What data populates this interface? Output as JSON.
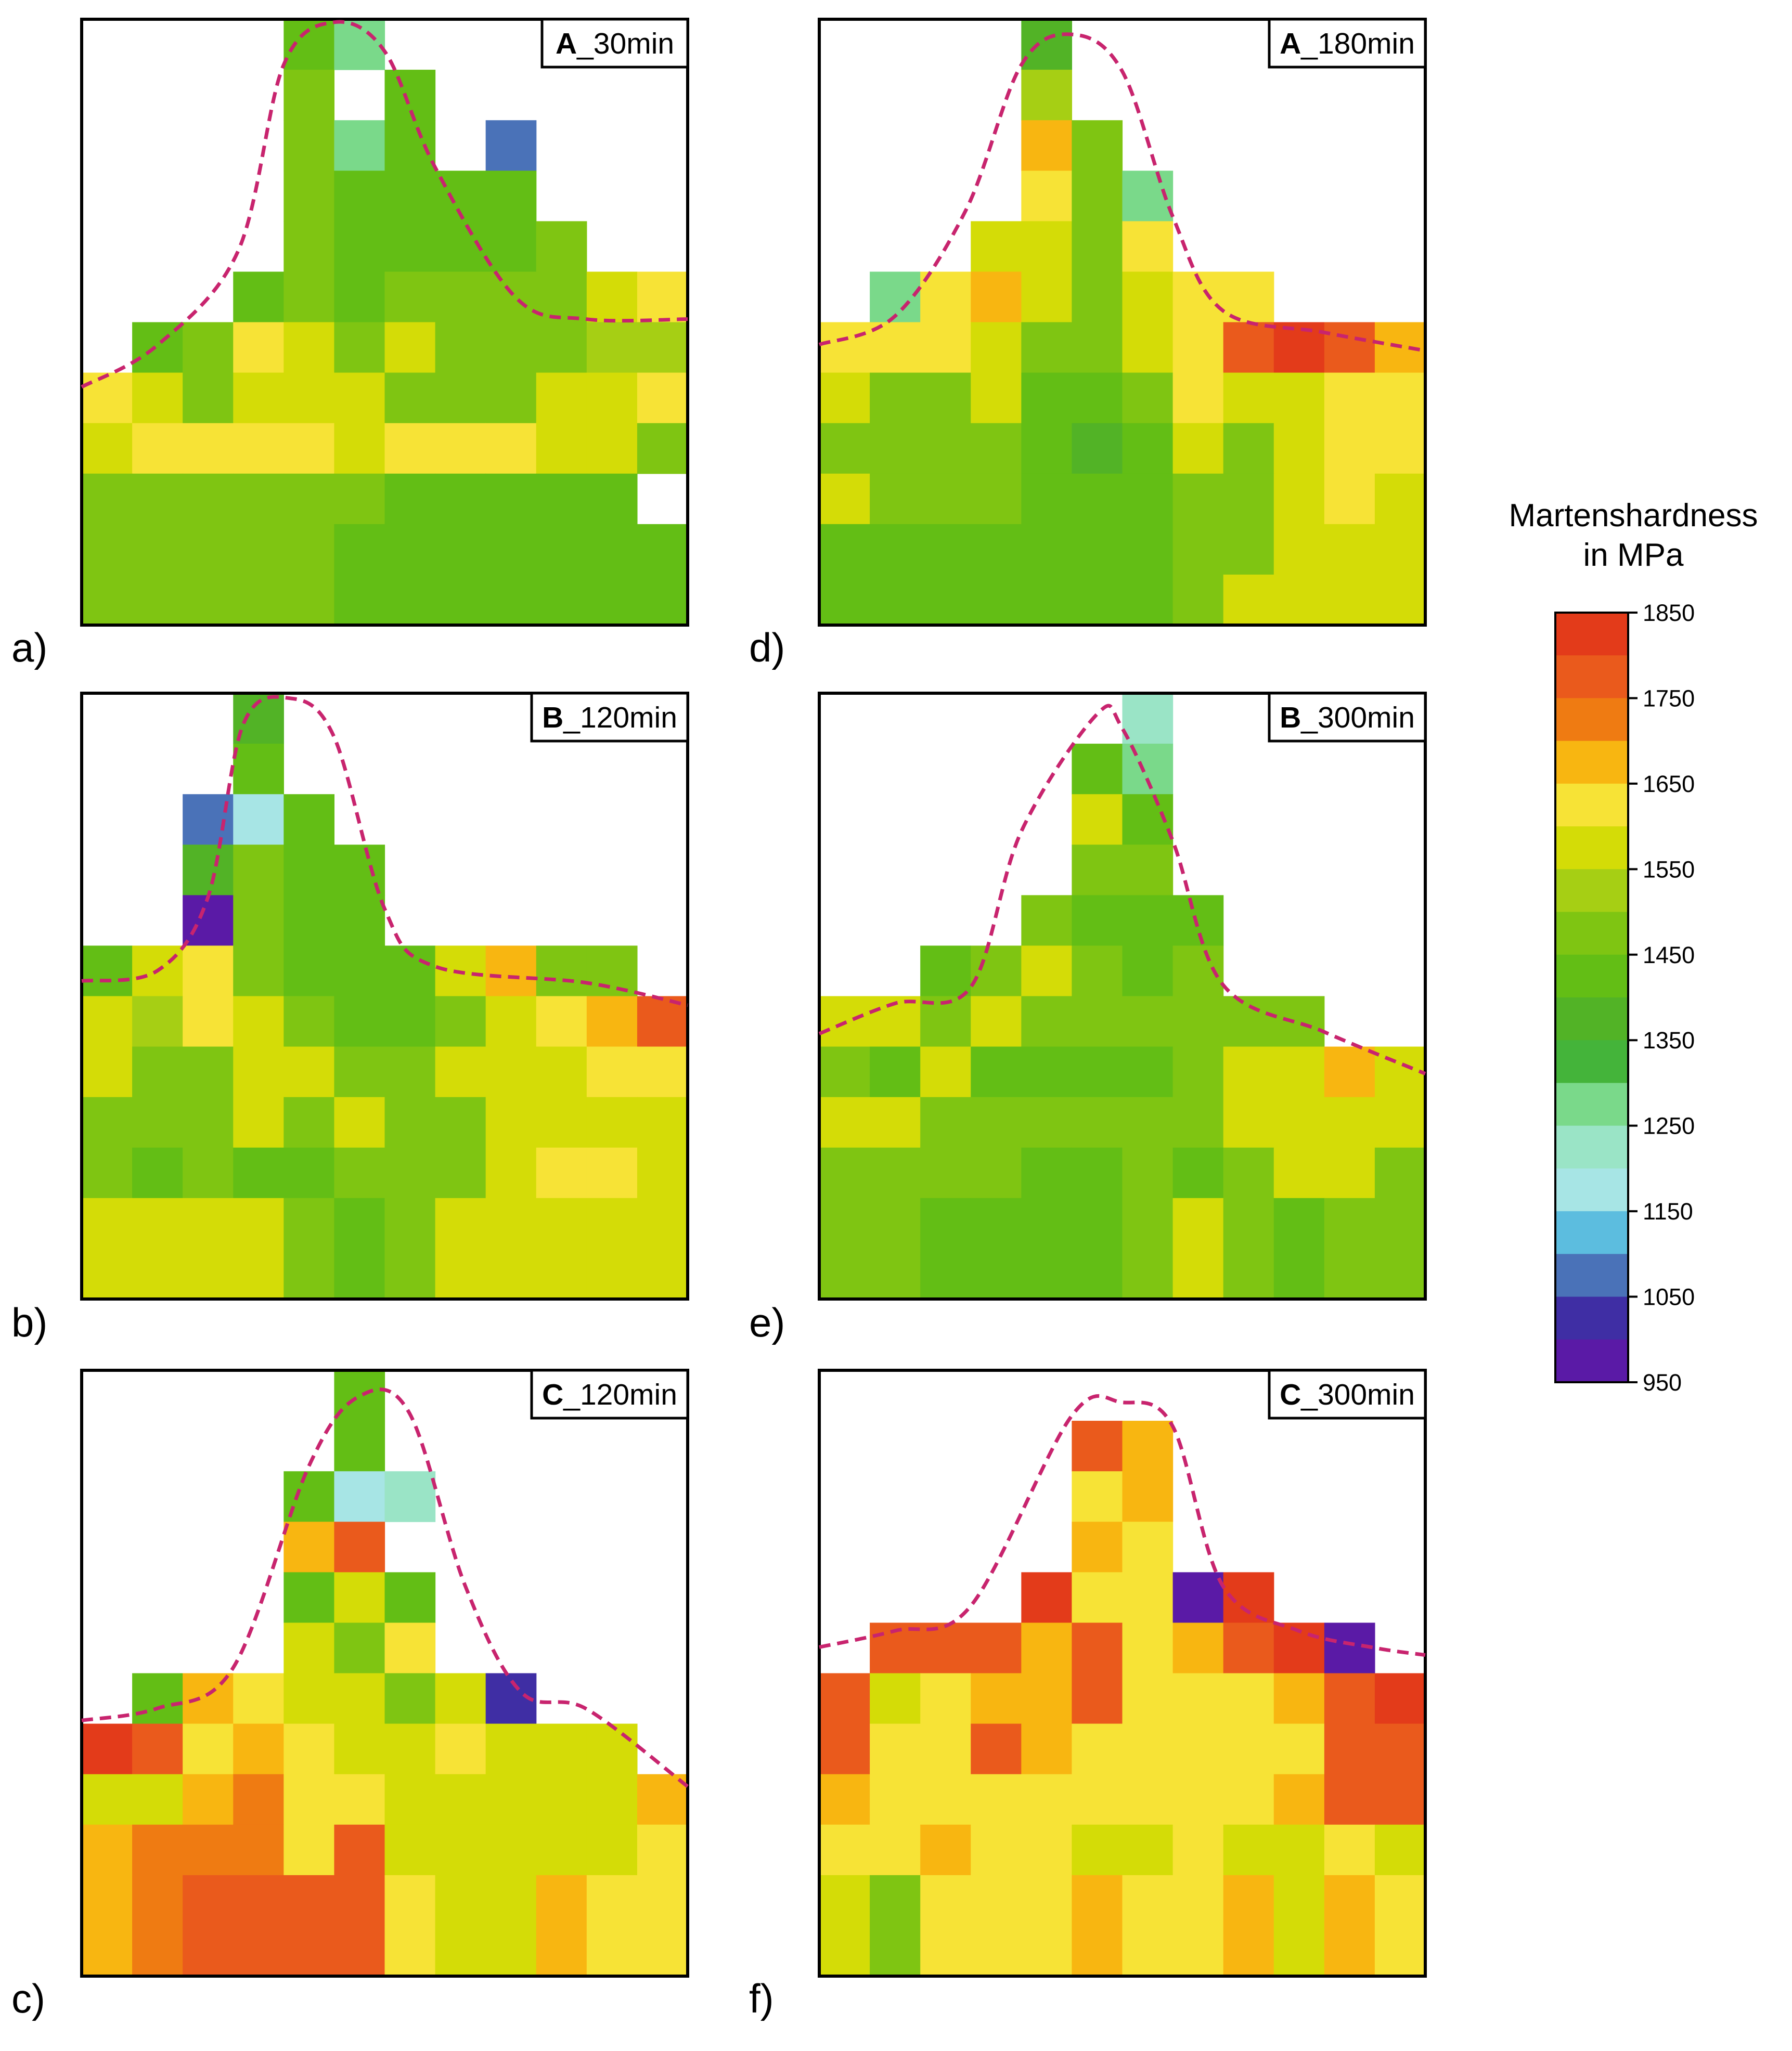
{
  "legend": {
    "title_line1": "Martenshardness",
    "title_line2": "in MPa",
    "ticks": [
      "1850",
      "1750",
      "1650",
      "1550",
      "1450",
      "1350",
      "1250",
      "1150",
      "1050",
      "950"
    ],
    "colors_top_to_bottom": [
      "#e33b1a",
      "#ea5a1c",
      "#ef7b12",
      "#f8b611",
      "#f7e336",
      "#d4dc07",
      "#a6cf14",
      "#7fc512",
      "#63be15",
      "#52b326",
      "#44b43a",
      "#7ad98a",
      "#9ae4c6",
      "#a7e5e5",
      "#5cbddf",
      "#4a72b8",
      "#3f2ea4",
      "#5a1aa6"
    ]
  },
  "chart_data": [
    {
      "type": "heatmap",
      "panel": "a)",
      "title_bold": "A",
      "title_rest": "_30min",
      "unit": "Martenshardness in MPa",
      "rows": 12,
      "cols": 12,
      "values": [
        [
          null,
          null,
          null,
          null,
          1430,
          1270,
          null,
          null,
          null,
          null,
          null,
          null
        ],
        [
          null,
          null,
          null,
          null,
          1500,
          null,
          1420,
          null,
          null,
          null,
          null,
          null
        ],
        [
          null,
          null,
          null,
          null,
          1500,
          1270,
          1430,
          null,
          1080,
          null,
          null,
          null
        ],
        [
          null,
          null,
          null,
          null,
          1480,
          1440,
          1440,
          1440,
          1440,
          null,
          null,
          null
        ],
        [
          null,
          null,
          null,
          null,
          1480,
          1440,
          1440,
          1440,
          1440,
          1460,
          null,
          null
        ],
        [
          null,
          null,
          null,
          1420,
          1480,
          1430,
          1480,
          1480,
          1480,
          1480,
          1560,
          1650
        ],
        [
          null,
          1440,
          1500,
          1650,
          1570,
          1500,
          1580,
          1500,
          1500,
          1500,
          1540,
          1540
        ],
        [
          1640,
          1570,
          1500,
          1560,
          1560,
          1560,
          1500,
          1500,
          1500,
          1560,
          1560,
          1640
        ],
        [
          1570,
          1650,
          1650,
          1650,
          1650,
          1570,
          1650,
          1650,
          1650,
          1560,
          1560,
          1500
        ],
        [
          1500,
          1500,
          1500,
          1500,
          1500,
          1500,
          1430,
          1410,
          1440,
          1440,
          1440,
          null
        ],
        [
          1500,
          1500,
          1500,
          1500,
          1500,
          1440,
          1440,
          1440,
          1420,
          1420,
          1440,
          1440
        ],
        [
          1500,
          1500,
          1500,
          1500,
          1500,
          1440,
          1440,
          1440,
          1420,
          1420,
          1440,
          1440
        ]
      ]
    },
    {
      "type": "heatmap",
      "panel": "d)",
      "title_bold": "A",
      "title_rest": "_180min",
      "unit": "Martenshardness in MPa",
      "rows": 12,
      "cols": 12,
      "values": [
        [
          null,
          null,
          null,
          null,
          1370,
          null,
          null,
          null,
          null,
          null,
          null,
          null
        ],
        [
          null,
          null,
          null,
          null,
          1520,
          null,
          null,
          null,
          null,
          null,
          null,
          null
        ],
        [
          null,
          null,
          null,
          null,
          1690,
          1500,
          null,
          null,
          null,
          null,
          null,
          null
        ],
        [
          null,
          null,
          null,
          null,
          1650,
          1500,
          1280,
          null,
          null,
          null,
          null,
          null
        ],
        [
          null,
          null,
          null,
          1570,
          1570,
          1500,
          1650,
          null,
          null,
          null,
          null,
          null
        ],
        [
          null,
          1280,
          1650,
          1700,
          1560,
          1500,
          1570,
          1650,
          1650,
          null,
          null,
          null
        ],
        [
          1650,
          1650,
          1650,
          1570,
          1500,
          1500,
          1560,
          1650,
          1780,
          1820,
          1780,
          1700
        ],
        [
          1570,
          1500,
          1500,
          1560,
          1440,
          1420,
          1500,
          1650,
          1570,
          1570,
          1650,
          1650
        ],
        [
          1500,
          1500,
          1500,
          1500,
          1440,
          1400,
          1440,
          1560,
          1500,
          1570,
          1650,
          1650
        ],
        [
          1560,
          1500,
          1500,
          1500,
          1440,
          1440,
          1440,
          1500,
          1500,
          1560,
          1650,
          1560
        ],
        [
          1440,
          1440,
          1440,
          1440,
          1440,
          1440,
          1440,
          1500,
          1500,
          1560,
          1560,
          1560
        ],
        [
          1440,
          1440,
          1440,
          1440,
          1440,
          1440,
          1440,
          1500,
          1560,
          1560,
          1560,
          1560
        ]
      ]
    },
    {
      "type": "heatmap",
      "panel": "b)",
      "title_bold": "B",
      "title_rest": "_120min",
      "unit": "Martenshardness in MPa",
      "rows": 12,
      "cols": 12,
      "values": [
        [
          null,
          null,
          null,
          1360,
          null,
          null,
          null,
          null,
          null,
          null,
          null,
          null
        ],
        [
          null,
          null,
          null,
          1430,
          null,
          null,
          null,
          null,
          null,
          null,
          null,
          null
        ],
        [
          null,
          null,
          1080,
          1180,
          1430,
          null,
          null,
          null,
          null,
          null,
          null,
          null
        ],
        [
          null,
          null,
          1400,
          1500,
          1440,
          1420,
          null,
          null,
          null,
          null,
          null,
          null
        ],
        [
          null,
          null,
          1000,
          1500,
          1440,
          1440,
          null,
          null,
          null,
          null,
          null,
          null
        ],
        [
          1440,
          1570,
          1650,
          1500,
          1430,
          1410,
          1440,
          1570,
          1690,
          1500,
          1500,
          null
        ],
        [
          1560,
          1520,
          1650,
          1560,
          1500,
          1440,
          1440,
          1500,
          1560,
          1650,
          1690,
          1760
        ],
        [
          1560,
          1500,
          1500,
          1560,
          1560,
          1500,
          1500,
          1560,
          1560,
          1560,
          1650,
          1650
        ],
        [
          1500,
          1500,
          1500,
          1560,
          1500,
          1560,
          1500,
          1500,
          1560,
          1560,
          1560,
          1560
        ],
        [
          1500,
          1440,
          1500,
          1440,
          1440,
          1500,
          1500,
          1500,
          1560,
          1650,
          1650,
          1560
        ],
        [
          1560,
          1560,
          1560,
          1560,
          1500,
          1440,
          1500,
          1560,
          1560,
          1560,
          1560,
          1560
        ],
        [
          1560,
          1560,
          1560,
          1560,
          1500,
          1440,
          1500,
          1560,
          1560,
          1560,
          1560,
          1560
        ]
      ]
    },
    {
      "type": "heatmap",
      "panel": "e)",
      "title_bold": "B",
      "title_rest": "_300min",
      "unit": "Martenshardness in MPa",
      "rows": 12,
      "cols": 12,
      "values": [
        [
          null,
          null,
          null,
          null,
          null,
          null,
          1230,
          null,
          null,
          null,
          null,
          null
        ],
        [
          null,
          null,
          null,
          null,
          null,
          1410,
          1280,
          null,
          null,
          null,
          null,
          null
        ],
        [
          null,
          null,
          null,
          null,
          null,
          1560,
          1440,
          null,
          null,
          null,
          null,
          null
        ],
        [
          null,
          null,
          null,
          null,
          null,
          1500,
          1500,
          null,
          null,
          null,
          null,
          null
        ],
        [
          null,
          null,
          null,
          null,
          1500,
          1440,
          1440,
          1440,
          null,
          null,
          null,
          null
        ],
        [
          null,
          null,
          1410,
          1500,
          1560,
          1500,
          1440,
          1500,
          null,
          null,
          null,
          null
        ],
        [
          1560,
          1560,
          1500,
          1560,
          1500,
          1500,
          1500,
          1500,
          1500,
          1500,
          null,
          null
        ],
        [
          1500,
          1440,
          1560,
          1440,
          1430,
          1430,
          1430,
          1500,
          1560,
          1560,
          1690,
          1560
        ],
        [
          1560,
          1560,
          1500,
          1500,
          1500,
          1500,
          1500,
          1500,
          1560,
          1560,
          1560,
          1560
        ],
        [
          1500,
          1500,
          1500,
          1500,
          1440,
          1440,
          1500,
          1440,
          1500,
          1560,
          1560,
          1500
        ],
        [
          1500,
          1500,
          1440,
          1440,
          1440,
          1440,
          1500,
          1560,
          1500,
          1440,
          1500,
          1500
        ],
        [
          1500,
          1500,
          1440,
          1440,
          1440,
          1440,
          1500,
          1560,
          1500,
          1440,
          1500,
          1500
        ]
      ]
    },
    {
      "type": "heatmap",
      "panel": "c)",
      "title_bold": "C",
      "title_rest": "_120min",
      "unit": "Martenshardness in MPa",
      "rows": 12,
      "cols": 12,
      "values": [
        [
          null,
          null,
          null,
          null,
          null,
          1440,
          null,
          null,
          null,
          null,
          null,
          null
        ],
        [
          null,
          null,
          null,
          null,
          null,
          1440,
          null,
          null,
          null,
          null,
          null,
          null
        ],
        [
          null,
          null,
          null,
          null,
          1420,
          1200,
          1240,
          null,
          null,
          null,
          null,
          null
        ],
        [
          null,
          null,
          null,
          null,
          1700,
          1770,
          null,
          null,
          null,
          null,
          null,
          null
        ],
        [
          null,
          null,
          null,
          null,
          1440,
          1560,
          1440,
          null,
          null,
          null,
          null,
          null
        ],
        [
          null,
          null,
          null,
          null,
          1560,
          1500,
          1650,
          null,
          null,
          null,
          null,
          null
        ],
        [
          null,
          1440,
          1700,
          1650,
          1600,
          1560,
          1500,
          1560,
          1020,
          null,
          null,
          null
        ],
        [
          1820,
          1800,
          1650,
          1700,
          1650,
          1600,
          1570,
          1650,
          1600,
          1600,
          1560,
          null
        ],
        [
          1600,
          1600,
          1700,
          1740,
          1650,
          1650,
          1570,
          1600,
          1600,
          1600,
          1600,
          1690
        ],
        [
          1700,
          1740,
          1740,
          1740,
          1650,
          1800,
          1570,
          1600,
          1600,
          1560,
          1600,
          1650
        ],
        [
          1680,
          1730,
          1780,
          1800,
          1800,
          1760,
          1650,
          1600,
          1600,
          1660,
          1650,
          1650
        ],
        [
          1680,
          1730,
          1780,
          1800,
          1800,
          1760,
          1650,
          1600,
          1600,
          1660,
          1650,
          1650
        ]
      ]
    },
    {
      "type": "heatmap",
      "panel": "f)",
      "title_bold": "C",
      "title_rest": "_300min",
      "unit": "Martenshardness in MPa",
      "rows": 12,
      "cols": 12,
      "values": [
        [
          null,
          null,
          null,
          null,
          null,
          null,
          null,
          null,
          null,
          null,
          null,
          null
        ],
        [
          null,
          null,
          null,
          null,
          null,
          1760,
          1690,
          null,
          null,
          null,
          null,
          null
        ],
        [
          null,
          null,
          null,
          null,
          null,
          1650,
          1690,
          null,
          null,
          null,
          null,
          null
        ],
        [
          null,
          null,
          null,
          null,
          null,
          1690,
          1650,
          null,
          null,
          null,
          null,
          null
        ],
        [
          null,
          null,
          null,
          null,
          1820,
          1650,
          1650,
          960,
          1820,
          null,
          null,
          null
        ],
        [
          null,
          1760,
          1800,
          1760,
          1700,
          1760,
          1650,
          1700,
          1760,
          1820,
          960,
          null
        ],
        [
          1800,
          1570,
          1650,
          1700,
          1700,
          1760,
          1650,
          1650,
          1650,
          1700,
          1800,
          1820
        ],
        [
          1760,
          1650,
          1650,
          1760,
          1700,
          1650,
          1650,
          1650,
          1650,
          1650,
          1760,
          1800
        ],
        [
          1700,
          1650,
          1650,
          1650,
          1650,
          1650,
          1650,
          1650,
          1650,
          1700,
          1760,
          1760
        ],
        [
          1650,
          1650,
          1700,
          1650,
          1650,
          1570,
          1570,
          1650,
          1570,
          1570,
          1650,
          1570
        ],
        [
          1570,
          1500,
          1650,
          1650,
          1650,
          1700,
          1650,
          1650,
          1700,
          1570,
          1700,
          1650
        ],
        [
          1570,
          1500,
          1650,
          1650,
          1650,
          1700,
          1650,
          1650,
          1700,
          1570,
          1700,
          1650
        ]
      ]
    }
  ]
}
